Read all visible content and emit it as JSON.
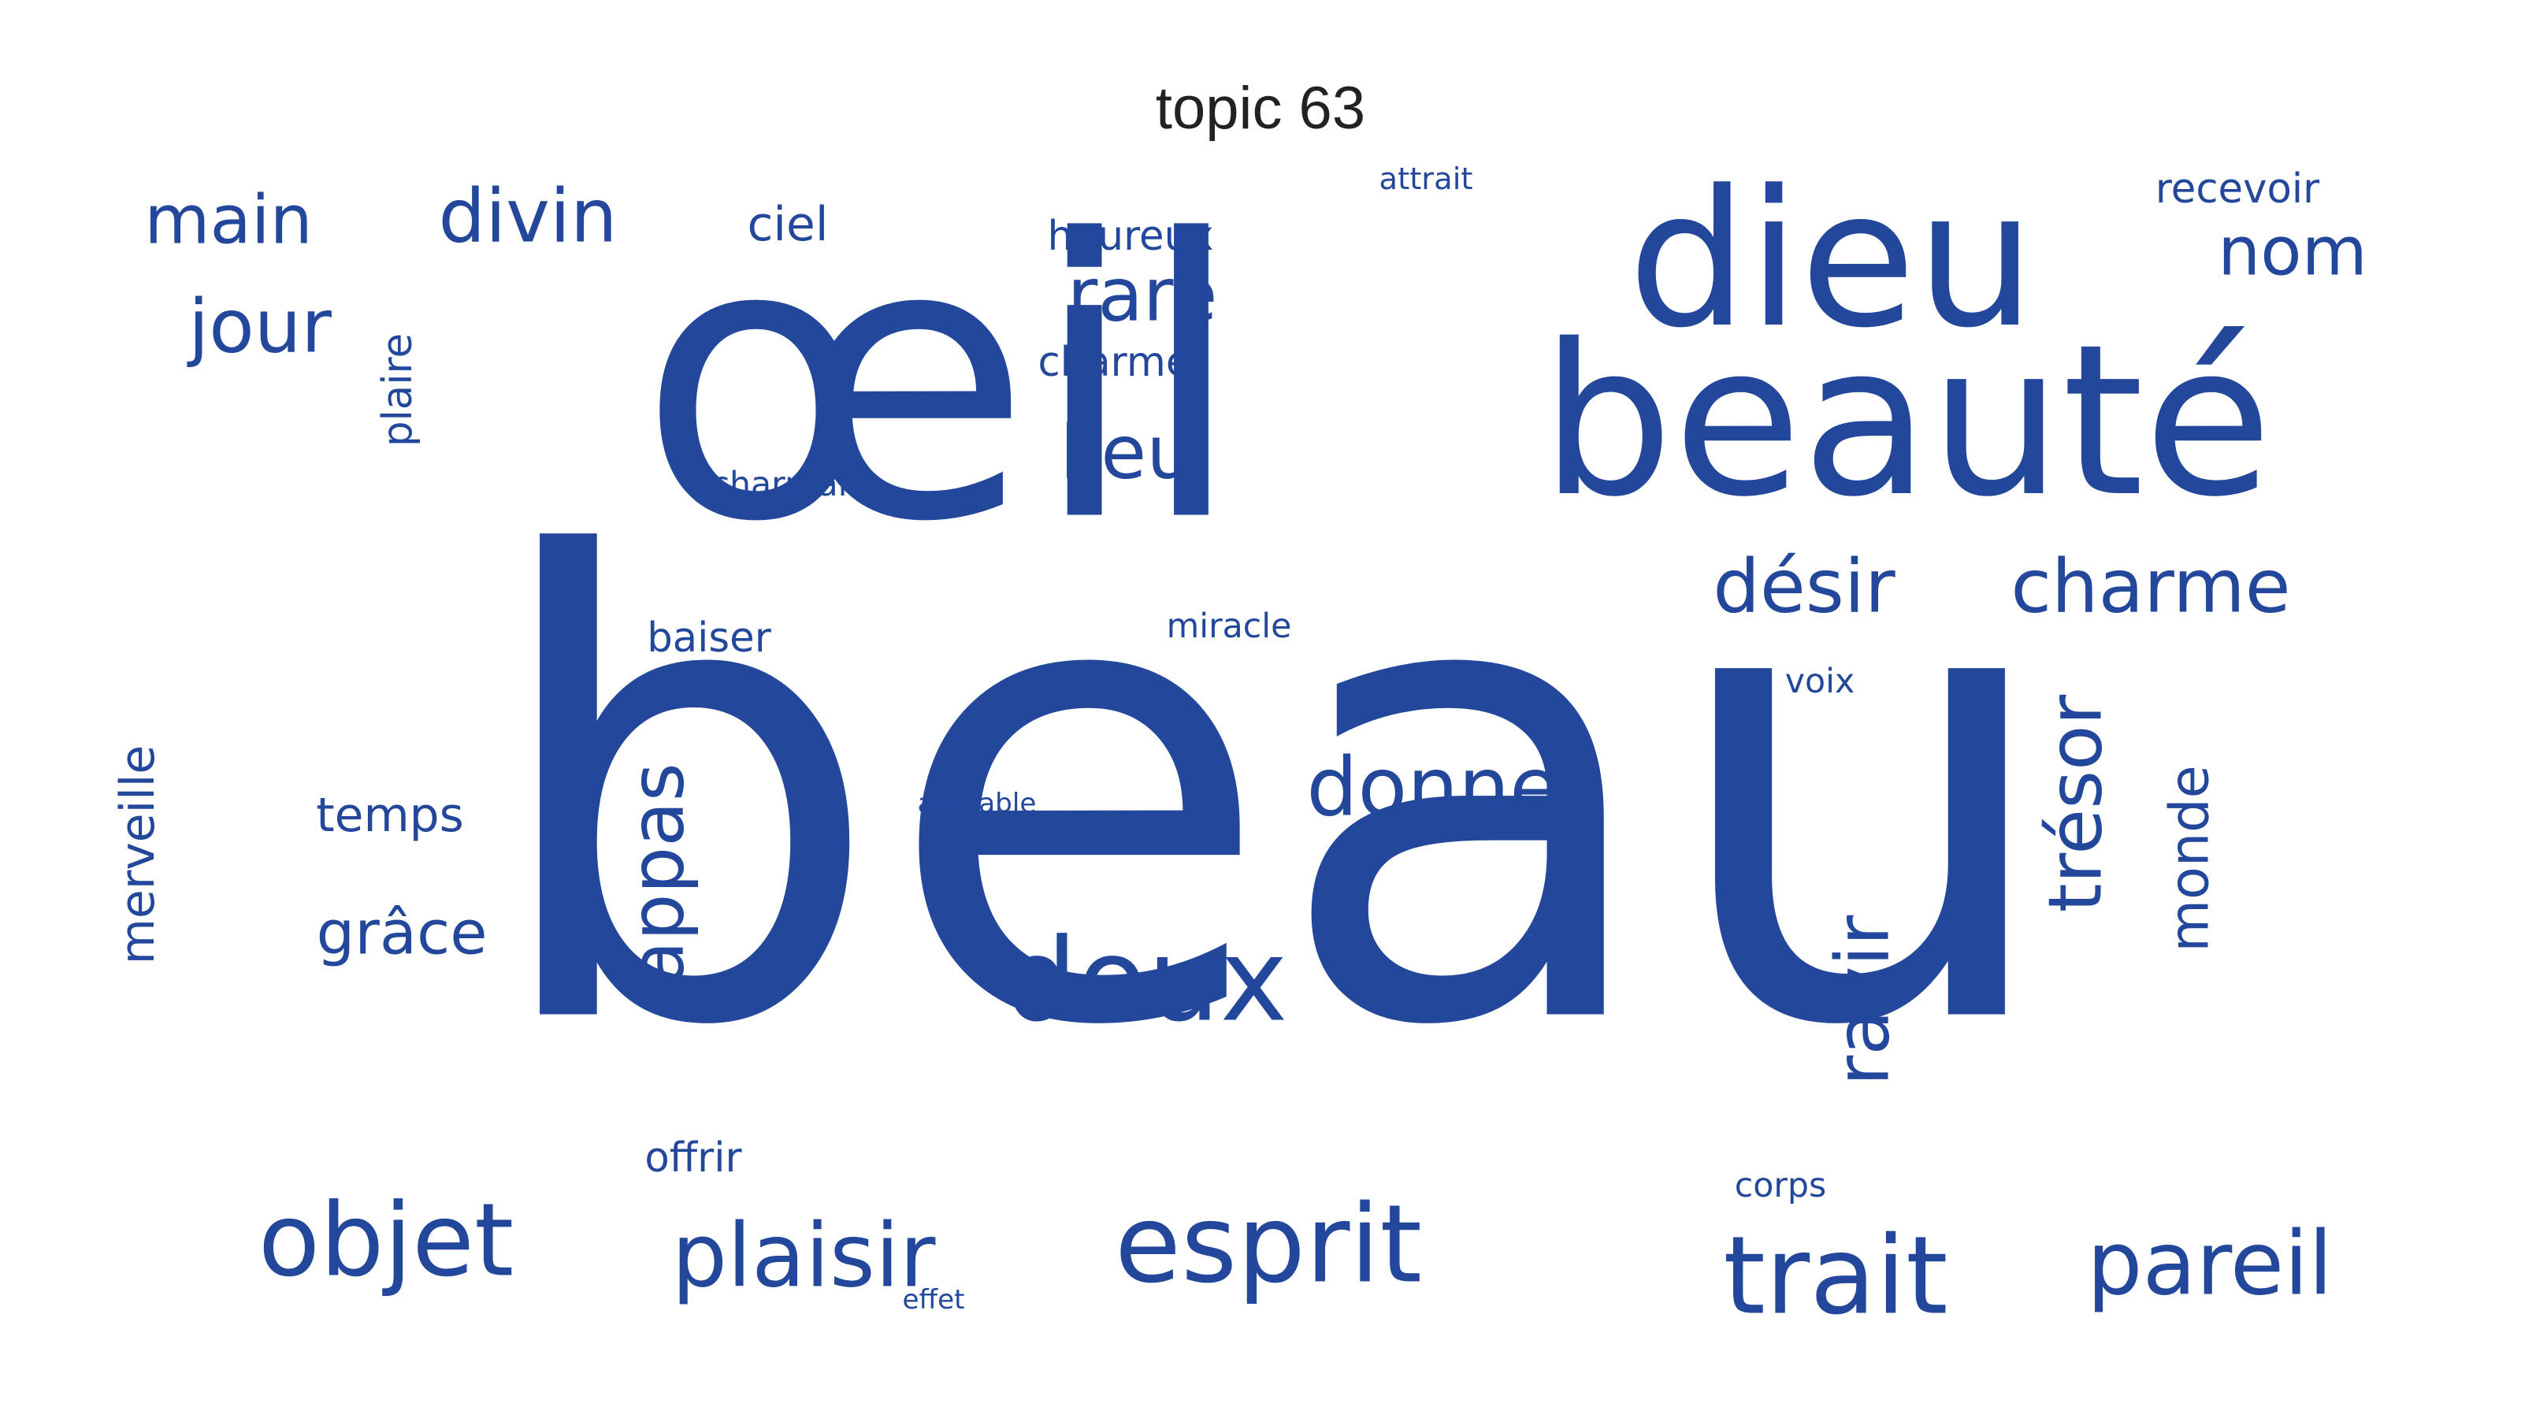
{
  "title": "topic 63",
  "word_color": "#22479B",
  "words": [
    {
      "text": "beau"
    },
    {
      "text": "œil"
    },
    {
      "text": "dieu"
    },
    {
      "text": "beauté"
    },
    {
      "text": "doux"
    },
    {
      "text": "objet"
    },
    {
      "text": "esprit"
    },
    {
      "text": "trait"
    },
    {
      "text": "plaisir"
    },
    {
      "text": "pareil"
    },
    {
      "text": "donner"
    },
    {
      "text": "désir"
    },
    {
      "text": "charme"
    },
    {
      "text": "divin"
    },
    {
      "text": "main"
    },
    {
      "text": "jour"
    },
    {
      "text": "rare"
    },
    {
      "text": "lieu"
    },
    {
      "text": "nom"
    },
    {
      "text": "appas"
    },
    {
      "text": "ravir"
    },
    {
      "text": "trésor"
    },
    {
      "text": "monde"
    },
    {
      "text": "ciel"
    },
    {
      "text": "grâce"
    },
    {
      "text": "merveille"
    },
    {
      "text": "heureux"
    },
    {
      "text": "charmer"
    },
    {
      "text": "recevoir"
    },
    {
      "text": "temps"
    },
    {
      "text": "baiser"
    },
    {
      "text": "offrir"
    },
    {
      "text": "charmant"
    },
    {
      "text": "voix"
    },
    {
      "text": "miracle"
    },
    {
      "text": "plaire"
    },
    {
      "text": "attrait"
    },
    {
      "text": "adorable"
    },
    {
      "text": "corps"
    },
    {
      "text": "effet"
    }
  ]
}
